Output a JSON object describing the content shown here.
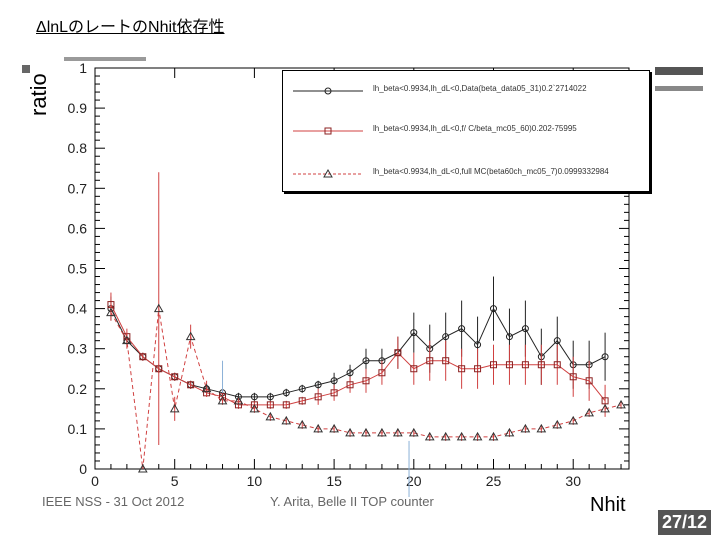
{
  "slide": {
    "title": "ΔlnLのレートのNhit依存性",
    "footer_left": "IEEE NSS - 31 Oct 2012",
    "footer_center": "Y. Arita, Belle II TOP counter",
    "page_number": "27/12"
  },
  "chart_data": {
    "type": "line",
    "ylabel": "ratio",
    "xlabel": "Nhit",
    "xlim": [
      0,
      33.5
    ],
    "ylim": [
      0,
      1
    ],
    "x_ticks": [
      "0",
      "5",
      "10",
      "15",
      "20",
      "25",
      "30"
    ],
    "y_ticks": [
      "0",
      "0.1",
      "0.2",
      "0.3",
      "0.4",
      "0.5",
      "0.6",
      "0.7",
      "0.8",
      "0.9",
      "1"
    ],
    "legend_position": "top-right",
    "series": [
      {
        "name": "lh_beta<0.9934,lh_dL<0,Data(beta_data05_31)0.2`2714022",
        "color": "#222222",
        "marker": "circle",
        "dash": "solid",
        "x": [
          1,
          2,
          3,
          4,
          5,
          6,
          7,
          8,
          9,
          10,
          11,
          12,
          13,
          14,
          15,
          16,
          17,
          18,
          19,
          20,
          21,
          22,
          23,
          24,
          25,
          26,
          27,
          28,
          29,
          30,
          31,
          32
        ],
        "y": [
          0.4,
          0.32,
          0.28,
          0.25,
          0.23,
          0.21,
          0.2,
          0.19,
          0.18,
          0.18,
          0.18,
          0.19,
          0.2,
          0.21,
          0.22,
          0.24,
          0.27,
          0.27,
          0.29,
          0.34,
          0.3,
          0.33,
          0.35,
          0.31,
          0.4,
          0.33,
          0.35,
          0.28,
          0.32,
          0.26,
          0.26,
          0.28
        ],
        "err": [
          0.03,
          0.01,
          0.01,
          0.01,
          0.01,
          0.01,
          0.01,
          0.01,
          0.01,
          0.01,
          0.01,
          0.01,
          0.01,
          0.01,
          0.02,
          0.02,
          0.03,
          0.03,
          0.04,
          0.05,
          0.06,
          0.06,
          0.07,
          0.07,
          0.08,
          0.07,
          0.07,
          0.07,
          0.06,
          0.06,
          0.06,
          0.06
        ]
      },
      {
        "name": "lh_beta<0.9934,lh_dL<0,f/ C/beta_mc05_60)0.202-75995",
        "color": "#d04040",
        "marker": "square",
        "dash": "solid",
        "x": [
          1,
          2,
          3,
          4,
          5,
          6,
          7,
          8,
          9,
          10,
          11,
          12,
          13,
          14,
          15,
          16,
          17,
          18,
          19,
          20,
          21,
          22,
          23,
          24,
          25,
          26,
          27,
          28,
          29,
          30,
          31,
          32
        ],
        "y": [
          0.41,
          0.33,
          0.28,
          0.25,
          0.23,
          0.21,
          0.19,
          0.18,
          0.16,
          0.16,
          0.16,
          0.16,
          0.17,
          0.18,
          0.19,
          0.21,
          0.22,
          0.24,
          0.29,
          0.25,
          0.27,
          0.27,
          0.25,
          0.25,
          0.26,
          0.26,
          0.26,
          0.26,
          0.26,
          0.23,
          0.22,
          0.17
        ],
        "err": [
          0.03,
          0.02,
          0.01,
          0.01,
          0.01,
          0.01,
          0.01,
          0.01,
          0.01,
          0.01,
          0.01,
          0.01,
          0.01,
          0.02,
          0.02,
          0.02,
          0.03,
          0.03,
          0.04,
          0.04,
          0.05,
          0.05,
          0.05,
          0.05,
          0.05,
          0.05,
          0.05,
          0.05,
          0.05,
          0.05,
          0.05,
          0.04
        ]
      },
      {
        "name": "lh_beta<0.9934,lh_dL<0,full MC(beta60ch_mc05_7)0.0999332984",
        "color": "#d04040",
        "marker": "triangle",
        "dash": "dashed",
        "x": [
          1,
          2,
          3,
          4,
          5,
          6,
          7,
          8,
          9,
          10,
          11,
          12,
          13,
          14,
          15,
          16,
          17,
          18,
          19,
          20,
          21,
          22,
          23,
          24,
          25,
          26,
          27,
          28,
          29,
          30,
          31,
          32,
          33
        ],
        "y": [
          0.39,
          0.32,
          0.0,
          0.4,
          0.15,
          0.33,
          0.2,
          0.17,
          0.17,
          0.15,
          0.13,
          0.12,
          0.11,
          0.1,
          0.1,
          0.09,
          0.09,
          0.09,
          0.09,
          0.09,
          0.08,
          0.08,
          0.08,
          0.08,
          0.08,
          0.09,
          0.1,
          0.1,
          0.11,
          0.12,
          0.14,
          0.15,
          0.16
        ],
        "err": [
          0.02,
          0.02,
          0.0,
          0.34,
          0.03,
          0.03,
          0.02,
          0.01,
          0.01,
          0.01,
          0.01,
          0.01,
          0.01,
          0.01,
          0.01,
          0.01,
          0.01,
          0.01,
          0.01,
          0.01,
          0.01,
          0.01,
          0.01,
          0.01,
          0.01,
          0.01,
          0.01,
          0.01,
          0.01,
          0.01,
          0.01,
          0.01,
          0.01
        ]
      }
    ]
  }
}
